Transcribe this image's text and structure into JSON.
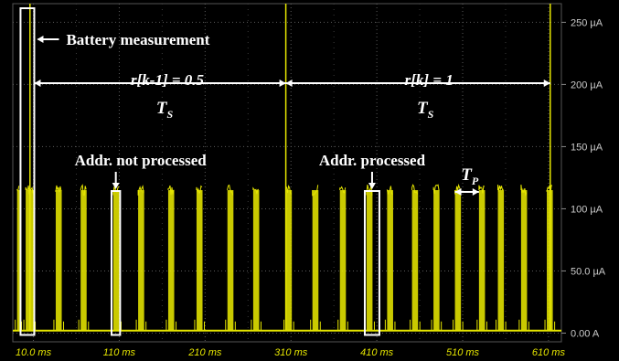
{
  "chart_data": {
    "type": "line",
    "title": "",
    "xlabel": "",
    "ylabel": "",
    "x_unit": "ms",
    "y_unit": "µA",
    "xlim": [
      -14,
      625
    ],
    "ylim": [
      -7,
      265
    ],
    "x_tick_values": [
      10,
      110,
      210,
      310,
      410,
      510,
      610
    ],
    "x_tick_labels": [
      "10.0 ms",
      "110 ms",
      "210 ms",
      "310 ms",
      "410 ms",
      "510 ms",
      "610 ms"
    ],
    "y_tick_values": [
      0,
      50,
      100,
      150,
      200,
      250
    ],
    "y_tick_labels": [
      "0.00 A",
      "50.0 µA",
      "100 µA",
      "150 µA",
      "200 µA",
      "250 µA"
    ],
    "grid": true,
    "series": [
      {
        "color": "#e6e600",
        "baseline_uA": 2,
        "pulse_level_uA": 115,
        "pulses": [
          {
            "start_ms": -9,
            "width_ms": 3
          },
          {
            "start_ms": 1,
            "width_ms": 9
          },
          {
            "start_ms": 36,
            "width_ms": 7
          },
          {
            "start_ms": 65,
            "width_ms": 7
          },
          {
            "start_ms": 103,
            "width_ms": 7
          },
          {
            "start_ms": 132,
            "width_ms": 7
          },
          {
            "start_ms": 167,
            "width_ms": 7
          },
          {
            "start_ms": 200,
            "width_ms": 7
          },
          {
            "start_ms": 236,
            "width_ms": 7
          },
          {
            "start_ms": 266,
            "width_ms": 7
          },
          {
            "start_ms": 304,
            "width_ms": 7
          },
          {
            "start_ms": 335,
            "width_ms": 7
          },
          {
            "start_ms": 367,
            "width_ms": 7
          },
          {
            "start_ms": 398,
            "width_ms": 7
          },
          {
            "start_ms": 422,
            "width_ms": 7
          },
          {
            "start_ms": 451,
            "width_ms": 7
          },
          {
            "start_ms": 476,
            "width_ms": 7
          },
          {
            "start_ms": 501,
            "width_ms": 7
          },
          {
            "start_ms": 529,
            "width_ms": 7
          },
          {
            "start_ms": 551,
            "width_ms": 7
          },
          {
            "start_ms": 578,
            "width_ms": 7
          },
          {
            "start_ms": 608,
            "width_ms": 7
          }
        ],
        "spikes": [
          {
            "at_ms": 6,
            "peak_uA": 265
          },
          {
            "at_ms": 304,
            "peak_uA": 265
          },
          {
            "at_ms": 612,
            "peak_uA": 265
          }
        ]
      }
    ],
    "annotations": {
      "battery": {
        "label": "Battery measurement",
        "x_start_ms": -5,
        "x_end_ms": 11
      },
      "ts_left": {
        "from_ms": 11,
        "to_ms": 304,
        "at_uA": 201,
        "ratio_label": "r[k-1] = 0.5",
        "period_label": "T",
        "period_sub": "S"
      },
      "ts_right": {
        "from_ms": 304,
        "to_ms": 612,
        "at_uA": 201,
        "ratio_label": "r[k] = 1",
        "period_label": "T",
        "period_sub": "S"
      },
      "not_processed": {
        "label": "Addr. not processed",
        "x_start_ms": 101,
        "x_end_ms": 111
      },
      "processed": {
        "label": "Addr. processed",
        "x_start_ms": 396,
        "x_end_ms": 413
      },
      "tp": {
        "from_ms": 501,
        "to_ms": 529,
        "at_uA": 120,
        "label": "T",
        "sub": "P"
      }
    }
  }
}
